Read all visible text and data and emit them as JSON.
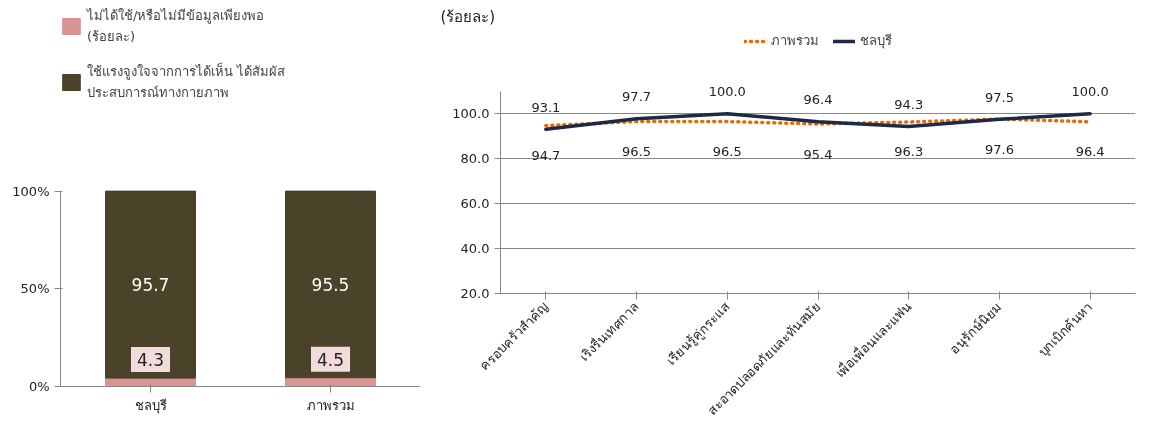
{
  "chart_data": [
    {
      "type": "bar",
      "stacked": true,
      "categories": [
        "ชลบุรี",
        "ภาพรวม"
      ],
      "series": [
        {
          "name": "ไม่ได้ใช้/หรือไม่มีข้อมูลเพียงพอ  (ร้อยละ)",
          "color": "#d99594",
          "values": [
            4.3,
            4.5
          ]
        },
        {
          "name": "ใช้แรงจูงใจจากการได้เห็น ได้สัมผัส ประสบการณ์ทางกายภาพ",
          "color": "#4a4229",
          "values": [
            95.7,
            95.5
          ]
        }
      ],
      "ylim": [
        0,
        100
      ],
      "yticks": [
        {
          "value": 0,
          "label": "0%"
        },
        {
          "value": 50,
          "label": "50%"
        },
        {
          "value": 100,
          "label": "100%"
        }
      ],
      "data_labels": true,
      "legend": "top",
      "grid": false
    },
    {
      "type": "line",
      "ylabel": "(ร้อยละ)",
      "categories": [
        "ครอบครัวสำคัญ",
        "เริงรื่นเทศกาล",
        "เรียนรู้คู่กระแส",
        "สะอาดปลอดภัยและทันสมัย",
        "เพื่อเพื่อนและแฟน",
        "อนุรักษ์นิยม",
        "บุกเบิกค้นหา"
      ],
      "series": [
        {
          "name": "ภาพรวม",
          "color": "#e36c0a",
          "line_style": "dotted",
          "values": [
            94.7,
            96.5,
            96.5,
            95.4,
            96.3,
            97.6,
            96.4
          ],
          "value_labels": [
            "94.7",
            "96.5",
            "96.5",
            "95.4",
            "96.3",
            "97.6",
            "96.4"
          ]
        },
        {
          "name": "ชลบุรี",
          "color": "#1b2a47",
          "line_style": "solid",
          "values": [
            93.1,
            97.7,
            100.0,
            96.4,
            94.3,
            97.5,
            100.0
          ],
          "value_labels": [
            "93.1",
            "97.7",
            "100.0",
            "96.4",
            "94.3",
            "97.5",
            "100.0"
          ]
        }
      ],
      "ylim": [
        20,
        110
      ],
      "yticks": [
        {
          "value": 20,
          "label": "20.0"
        },
        {
          "value": 40,
          "label": "40.0"
        },
        {
          "value": 60,
          "label": "60.0"
        },
        {
          "value": 80,
          "label": "80.0"
        },
        {
          "value": 100,
          "label": "100.0"
        }
      ],
      "legend": "top",
      "grid": "y",
      "marker": "none"
    }
  ]
}
